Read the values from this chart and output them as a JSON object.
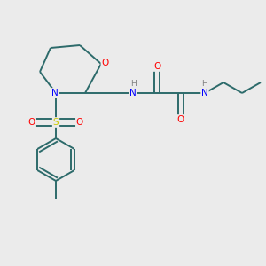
{
  "background_color": "#ebebeb",
  "atom_colors": {
    "C": "#2d6b6b",
    "N": "#0000ff",
    "O": "#ff0000",
    "S": "#cccc00",
    "H": "#808080"
  },
  "bond_color": "#2d6b6b",
  "bond_width": 1.4,
  "figsize": [
    3.0,
    3.0
  ],
  "dpi": 100,
  "xlim": [
    0,
    10
  ],
  "ylim": [
    0,
    10
  ]
}
